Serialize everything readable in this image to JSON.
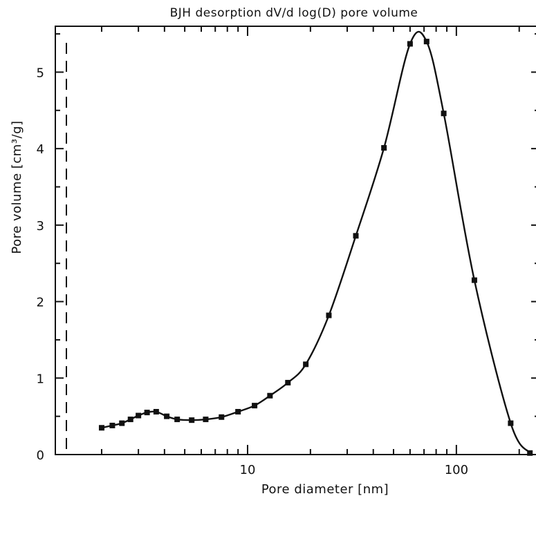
{
  "chart_data": {
    "type": "line",
    "title": "BJH desorption dV/d  log(D) pore volume",
    "xlabel": "Pore diameter [nm]",
    "ylabel": "Pore volume [cm³/g]",
    "x_scale": "log",
    "xlim": [
      1.2,
      250
    ],
    "ylim": [
      0,
      5.6
    ],
    "x_ticks": [
      10,
      100
    ],
    "x_tick_labels": [
      "10",
      "100"
    ],
    "y_ticks": [
      0,
      1,
      2,
      3,
      4,
      5
    ],
    "y_tick_labels": [
      "0",
      "1",
      "2",
      "3",
      "4",
      "5"
    ],
    "grid": false,
    "series": [
      {
        "x": [
          2.0,
          2.25,
          2.5,
          2.75,
          3.0,
          3.3,
          3.65,
          4.1,
          4.6,
          5.4,
          6.3,
          7.5,
          9.0,
          10.8,
          12.8,
          15.6,
          19.0,
          24.5,
          33.0,
          45.0,
          60.0,
          72.0,
          87.0,
          122.0,
          182.0,
          225.0
        ],
        "y": [
          0.35,
          0.38,
          0.41,
          0.46,
          0.51,
          0.55,
          0.56,
          0.5,
          0.46,
          0.45,
          0.46,
          0.49,
          0.56,
          0.64,
          0.77,
          0.94,
          1.18,
          1.82,
          2.86,
          4.01,
          5.37,
          5.4,
          4.46,
          2.28,
          0.41,
          0.02
        ]
      }
    ]
  }
}
